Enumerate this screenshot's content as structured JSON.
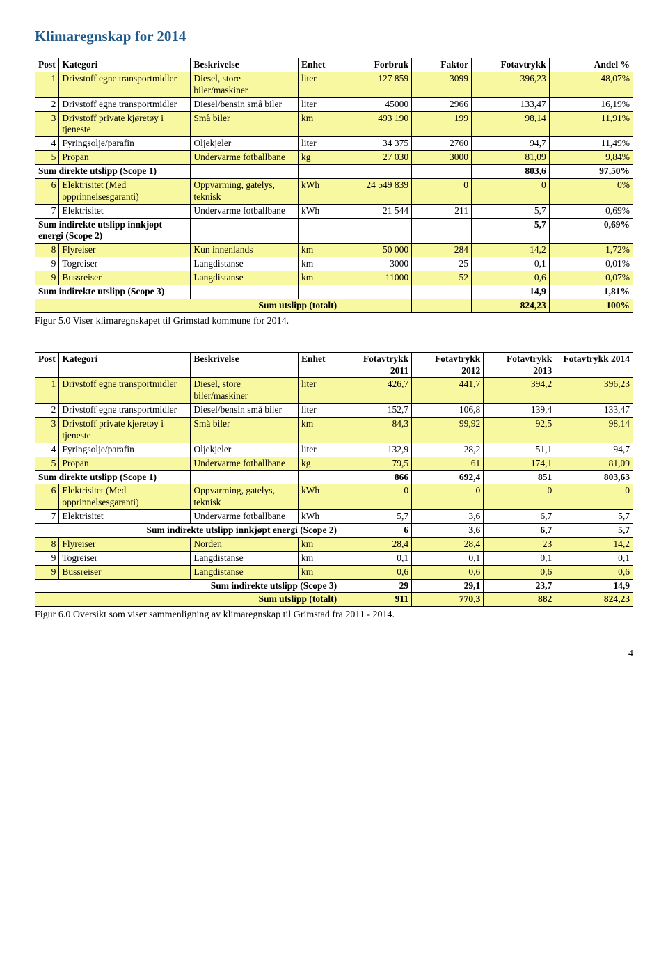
{
  "page": {
    "title": "Klimaregnskap for 2014",
    "title_color": "#1f5a8a",
    "caption1": "Figur 5.0 Viser klimaregnskapet til Grimstad kommune for 2014.",
    "caption2": "Figur 6.0 Oversikt som viser sammenligning av klimaregnskap til Grimstad fra 2011 - 2014.",
    "page_number": "4"
  },
  "colors": {
    "row_highlight": "#f8f8a1",
    "border": "#000000",
    "background": "#ffffff",
    "text": "#000000"
  },
  "table1": {
    "col_widths_pct": [
      4,
      22,
      18,
      7,
      12,
      10,
      13,
      14
    ],
    "headers": [
      "Post",
      "Kategori",
      "Beskrivelse",
      "Enhet",
      "Forbruk",
      "Faktor",
      "Fotavtrykk",
      "Andel %"
    ],
    "rows": [
      {
        "class": "yellow",
        "cells": [
          "1",
          "Drivstoff egne transportmidler",
          "Diesel, store biler/maskiner",
          "liter",
          "127 859",
          "3099",
          "396,23",
          "48,07%"
        ]
      },
      {
        "class": "plain",
        "cells": [
          "2",
          "Drivstoff egne transportmidler",
          "Diesel/bensin små biler",
          "liter",
          "45000",
          "2966",
          "133,47",
          "16,19%"
        ]
      },
      {
        "class": "yellow",
        "cells": [
          "3",
          "Drivstoff private kjøretøy i tjeneste",
          "Små biler",
          "km",
          "493 190",
          "199",
          "98,14",
          "11,91%"
        ]
      },
      {
        "class": "plain",
        "cells": [
          "4",
          "Fyringsolje/parafin",
          "Oljekjeler",
          "liter",
          "34 375",
          "2760",
          "94,7",
          "11,49%"
        ]
      },
      {
        "class": "yellow",
        "cells": [
          "5",
          "Propan",
          "Undervarme fotballbane",
          "kg",
          "27 030",
          "3000",
          "81,09",
          "9,84%"
        ]
      },
      {
        "class": "sum",
        "cells": [
          "",
          "Sum direkte utslipp (Scope 1)",
          "",
          "",
          "",
          "",
          "803,6",
          "97,50%"
        ],
        "label_span": true
      },
      {
        "class": "yellow",
        "cells": [
          "6",
          "Elektrisitet (Med opprinnelsesgaranti)",
          "Oppvarming, gatelys, teknisk",
          "kWh",
          "24 549 839",
          "0",
          "0",
          "0%"
        ]
      },
      {
        "class": "plain",
        "cells": [
          "7",
          "Elektrisitet",
          "Undervarme fotballbane",
          "kWh",
          "21 544",
          "211",
          "5,7",
          "0,69%"
        ]
      },
      {
        "class": "sum",
        "cells": [
          "",
          "Sum indirekte utslipp innkjøpt energi (Scope 2)",
          "",
          "",
          "",
          "",
          "5,7",
          "0,69%"
        ],
        "label_span": true
      },
      {
        "class": "yellow",
        "cells": [
          "8",
          "Flyreiser",
          "Kun innenlands",
          "km",
          "50 000",
          "284",
          "14,2",
          "1,72%"
        ]
      },
      {
        "class": "plain",
        "cells": [
          "9",
          "Togreiser",
          "Langdistanse",
          "km",
          "3000",
          "25",
          "0,1",
          "0,01%"
        ]
      },
      {
        "class": "yellow",
        "cells": [
          "9",
          "Bussreiser",
          "Langdistanse",
          "km",
          "11000",
          "52",
          "0,6",
          "0,07%"
        ]
      },
      {
        "class": "sum",
        "cells": [
          "",
          "Sum indirekte utslipp (Scope 3)",
          "",
          "",
          "",
          "",
          "14,9",
          "1,81%"
        ],
        "label_span": true
      },
      {
        "class": "sum-yellow",
        "cells": [
          "",
          "Sum utslipp (totalt)",
          "",
          "",
          "",
          "",
          "824,23",
          "100%"
        ],
        "label_span_right": true
      }
    ]
  },
  "table2": {
    "col_widths_pct": [
      4,
      22,
      18,
      7,
      12,
      12,
      12,
      13
    ],
    "headers": [
      "Post",
      "Kategori",
      "Beskrivelse",
      "Enhet",
      "Fotavtrykk 2011",
      "Fotavtrykk 2012",
      "Fotavtrykk 2013",
      "Fotavtrykk 2014"
    ],
    "rows": [
      {
        "class": "yellow",
        "cells": [
          "1",
          "Drivstoff egne transportmidler",
          "Diesel, store biler/maskiner",
          "liter",
          "426,7",
          "441,7",
          "394,2",
          "396,23"
        ]
      },
      {
        "class": "plain",
        "cells": [
          "2",
          "Drivstoff egne transportmidler",
          "Diesel/bensin små biler",
          "liter",
          "152,7",
          "106,8",
          "139,4",
          "133,47"
        ]
      },
      {
        "class": "yellow",
        "cells": [
          "3",
          "Drivstoff private kjøretøy i tjeneste",
          "Små biler",
          "km",
          "84,3",
          "99,92",
          "92,5",
          "98,14"
        ]
      },
      {
        "class": "plain",
        "cells": [
          "4",
          "Fyringsolje/parafin",
          "Oljekjeler",
          "liter",
          "132,9",
          "28,2",
          "51,1",
          "94,7"
        ]
      },
      {
        "class": "yellow",
        "cells": [
          "5",
          "Propan",
          "Undervarme fotballbane",
          "kg",
          "79,5",
          "61",
          "174,1",
          "81,09"
        ]
      },
      {
        "class": "sum",
        "cells": [
          "",
          "Sum direkte utslipp (Scope 1)",
          "",
          "",
          "866",
          "692,4",
          "851",
          "803,63"
        ],
        "label_span": true
      },
      {
        "class": "yellow",
        "cells": [
          "6",
          "Elektrisitet (Med opprinnelsesgaranti)",
          "Oppvarming, gatelys, teknisk",
          "kWh",
          "0",
          "0",
          "0",
          "0"
        ]
      },
      {
        "class": "plain",
        "cells": [
          "7",
          "Elektrisitet",
          "Undervarme fotballbane",
          "kWh",
          "5,7",
          "3,6",
          "6,7",
          "5,7"
        ]
      },
      {
        "class": "sum",
        "cells": [
          "",
          "Sum indirekte utslipp innkjøpt energi (Scope 2)",
          "",
          "",
          "6",
          "3,6",
          "6,7",
          "5,7"
        ],
        "label_span_right": true
      },
      {
        "class": "yellow",
        "cells": [
          "8",
          "Flyreiser",
          "Norden",
          "km",
          "28,4",
          "28,4",
          "23",
          "14,2"
        ]
      },
      {
        "class": "plain",
        "cells": [
          "9",
          "Togreiser",
          "Langdistanse",
          "km",
          "0,1",
          "0,1",
          "0,1",
          "0,1"
        ]
      },
      {
        "class": "yellow",
        "cells": [
          "9",
          "Bussreiser",
          "Langdistanse",
          "km",
          "0,6",
          "0,6",
          "0,6",
          "0,6"
        ]
      },
      {
        "class": "sum",
        "cells": [
          "",
          "Sum indirekte utslipp (Scope 3)",
          "",
          "",
          "29",
          "29,1",
          "23,7",
          "14,9"
        ],
        "label_span_right": true
      },
      {
        "class": "sum-yellow",
        "cells": [
          "",
          "Sum utslipp (totalt)",
          "",
          "",
          "911",
          "770,3",
          "882",
          "824,23"
        ],
        "label_span_right": true
      }
    ]
  }
}
